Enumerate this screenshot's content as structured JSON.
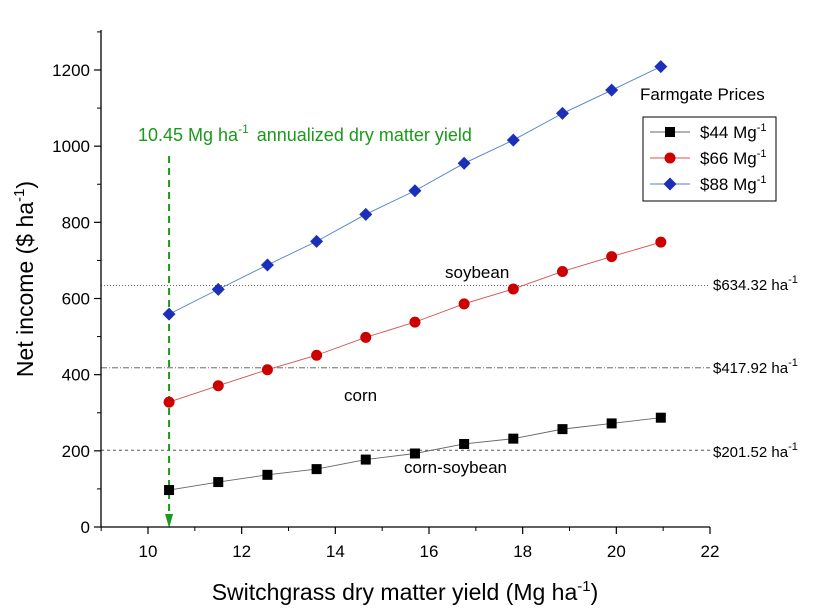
{
  "chart_data": {
    "type": "line",
    "xlabel": "Switchgrass dry matter yield (Mg ha",
    "xlabel_sup": "-1",
    "xlabel_end": ")",
    "ylabel": "Net income ($ ha",
    "ylabel_sup": "-1",
    "ylabel_end": ")",
    "xlim": [
      9,
      22
    ],
    "ylim": [
      0,
      1300
    ],
    "x_ticks": [
      10,
      12,
      14,
      16,
      18,
      20,
      22
    ],
    "x_tick_labels": [
      "10",
      "12",
      "14",
      "16",
      "18",
      "20",
      "22"
    ],
    "y_ticks": [
      0,
      200,
      400,
      600,
      800,
      1000,
      1200
    ],
    "y_tick_labels": [
      "0",
      "200",
      "400",
      "600",
      "800",
      "1000",
      "1200"
    ],
    "x": [
      10.45,
      11.5,
      12.55,
      13.6,
      14.65,
      15.7,
      16.75,
      17.8,
      18.85,
      19.9,
      20.95
    ],
    "series": [
      {
        "name": "$44 Mg",
        "sup": "-1",
        "color": "#000000",
        "marker": "square",
        "values": [
          97,
          118,
          137,
          152,
          177,
          193,
          218,
          232,
          257,
          272,
          287
        ]
      },
      {
        "name": "$66 Mg",
        "sup": "-1",
        "color": "#cc0000",
        "marker": "circle",
        "values": [
          328,
          371,
          413,
          451,
          498,
          538,
          586,
          625,
          671,
          710,
          748
        ]
      },
      {
        "name": "$88 Mg",
        "sup": "-1",
        "color": "#1c2fb8",
        "marker": "diamond",
        "values": [
          559,
          624,
          688,
          750,
          821,
          883,
          955,
          1016,
          1086,
          1147,
          1209
        ]
      }
    ],
    "legend_title": "Farmgate Prices",
    "legend_position": "top-right",
    "reference_lines": [
      {
        "value": 634.32,
        "label": "$634.32 ha",
        "sup": "-1",
        "crop": "soybean",
        "dash": "1,2"
      },
      {
        "value": 417.92,
        "label": "$417.92 ha",
        "sup": "-1",
        "crop": "corn",
        "dash": "6,2,1,2"
      },
      {
        "value": 201.52,
        "label": "$201.52 ha",
        "sup": "-1",
        "crop": "corn-soybean",
        "dash": "3,3"
      }
    ],
    "annotation": {
      "x": 10.45,
      "text_value": "10.45 Mg ha",
      "text_sup": "-1",
      "text_rest": "annualized dry matter yield",
      "color": "#1a9a1a"
    }
  }
}
